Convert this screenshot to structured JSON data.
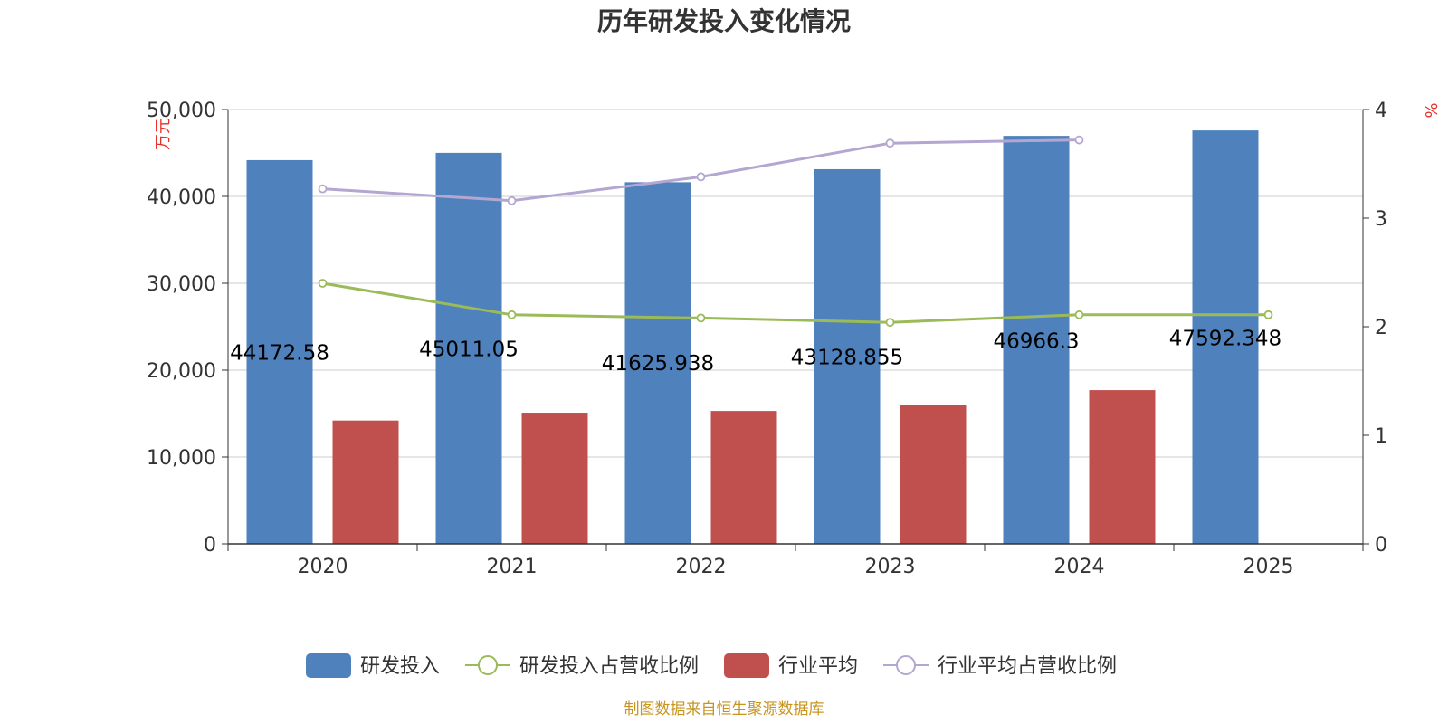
{
  "chart_data": {
    "type": "bar",
    "title": "历年研发投入变化情况",
    "categories": [
      "2020",
      "2021",
      "2022",
      "2023",
      "2024",
      "2025"
    ],
    "y_left": {
      "unit": "万元",
      "ylim": [
        0,
        50000
      ],
      "ticks": [
        "0",
        "10,000",
        "20,000",
        "30,000",
        "40,000",
        "50,000"
      ]
    },
    "y_right": {
      "unit": "%",
      "ylim": [
        0,
        4
      ],
      "ticks": [
        "0",
        "1",
        "2",
        "3",
        "4"
      ]
    },
    "grid": true,
    "legend_position": "bottom",
    "series": [
      {
        "name": "研发投入",
        "type": "bar",
        "axis": "left",
        "color": "#4f81bd",
        "values": [
          44172.58,
          45011.05,
          41625.938,
          43128.855,
          46966.3,
          47592.348
        ],
        "labels": [
          "44172.58",
          "45011.05",
          "41625.938",
          "43128.855",
          "46966.3",
          "47592.348"
        ]
      },
      {
        "name": "研发投入占营收比例",
        "type": "line",
        "axis": "right",
        "color": "#9bbb59",
        "values": [
          2.4,
          2.11,
          2.08,
          2.04,
          2.11,
          2.11
        ]
      },
      {
        "name": "行业平均",
        "type": "bar",
        "axis": "left",
        "color": "#c0504d",
        "values": [
          14200,
          15100,
          15300,
          16000,
          17700,
          null
        ]
      },
      {
        "name": "行业平均占营收比例",
        "type": "line",
        "axis": "right",
        "color": "#b3a6d1",
        "values": [
          3.27,
          3.16,
          3.38,
          3.69,
          3.72,
          null
        ]
      }
    ]
  },
  "footer": {
    "source": "制图数据来自恒生聚源数据库"
  }
}
